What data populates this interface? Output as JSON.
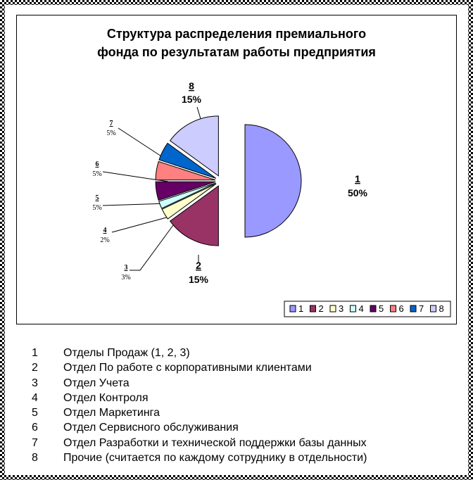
{
  "chart_data": {
    "type": "pie",
    "exploded": true,
    "title_lines": [
      "Структура распределения премиального",
      "фонда по результатам работы предприятия"
    ],
    "slices": [
      {
        "label": "1",
        "percent_label": "50%",
        "value": 50,
        "color": "#9999ff"
      },
      {
        "label": "2",
        "percent_label": "15%",
        "value": 15,
        "color": "#993366"
      },
      {
        "label": "3",
        "percent_label": "3%",
        "value": 3,
        "color": "#ffffcc"
      },
      {
        "label": "4",
        "percent_label": "2%",
        "value": 2,
        "color": "#ccffff"
      },
      {
        "label": "5",
        "percent_label": "5%",
        "value": 5,
        "color": "#660066"
      },
      {
        "label": "6",
        "percent_label": "5%",
        "value": 5,
        "color": "#ff8080"
      },
      {
        "label": "7",
        "percent_label": "5%",
        "value": 5,
        "color": "#0066cc"
      },
      {
        "label": "8",
        "percent_label": "15%",
        "value": 15,
        "color": "#ccccff"
      }
    ],
    "legend_position": "bottom-right"
  },
  "departments": [
    {
      "num": "1",
      "name": "Отделы Продаж (1, 2, 3)"
    },
    {
      "num": "2",
      "name": "Отдел По работе с корпоративными клиентами"
    },
    {
      "num": "3",
      "name": "Отдел Учета"
    },
    {
      "num": "4",
      "name": "Отдел Контроля"
    },
    {
      "num": "5",
      "name": "Отдел Маркетинга"
    },
    {
      "num": "6",
      "name": "Отдел Сервисного обслуживания"
    },
    {
      "num": "7",
      "name": "Отдел Разработки и технической поддержки базы данных"
    },
    {
      "num": "8",
      "name": "Прочие (считается по каждому сотруднику в отдельности)"
    }
  ]
}
